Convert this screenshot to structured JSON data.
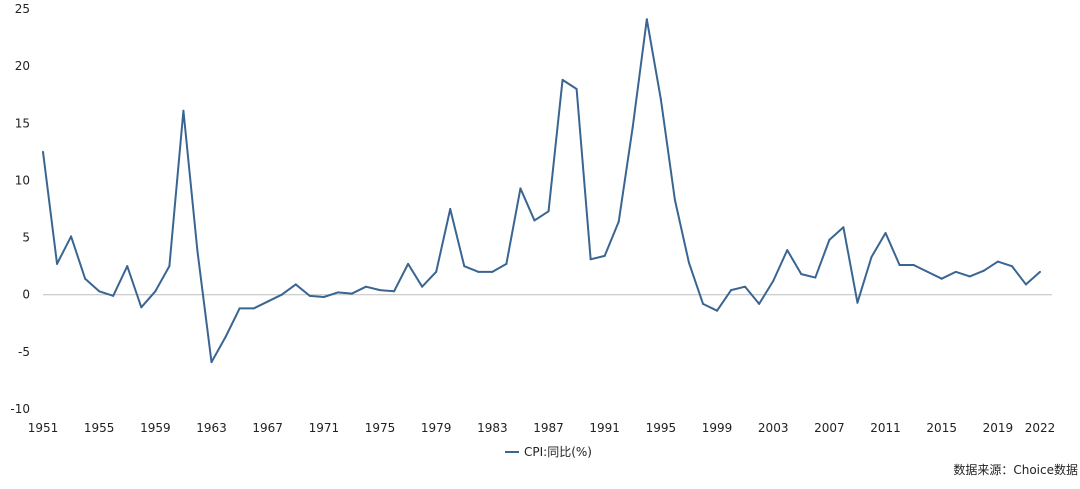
{
  "chart_data": {
    "type": "line",
    "title": "",
    "xlabel": "",
    "ylabel": "",
    "x": [
      1951,
      1952,
      1953,
      1954,
      1955,
      1956,
      1957,
      1958,
      1959,
      1960,
      1961,
      1962,
      1963,
      1964,
      1965,
      1966,
      1967,
      1968,
      1969,
      1970,
      1971,
      1972,
      1973,
      1974,
      1975,
      1976,
      1977,
      1978,
      1979,
      1980,
      1981,
      1982,
      1983,
      1984,
      1985,
      1986,
      1987,
      1988,
      1989,
      1990,
      1991,
      1992,
      1993,
      1994,
      1995,
      1996,
      1997,
      1998,
      1999,
      2000,
      2001,
      2002,
      2003,
      2004,
      2005,
      2006,
      2007,
      2008,
      2009,
      2010,
      2011,
      2012,
      2013,
      2014,
      2015,
      2016,
      2017,
      2018,
      2019,
      2020,
      2021,
      2022
    ],
    "series": [
      {
        "name": "CPI:同比(%)",
        "color": "#3a6592",
        "values": [
          12.5,
          2.7,
          5.1,
          1.4,
          0.3,
          -0.1,
          2.5,
          -1.1,
          0.3,
          2.5,
          16.1,
          3.8,
          -5.9,
          -3.7,
          -1.2,
          -1.2,
          -0.6,
          0.0,
          0.9,
          -0.1,
          -0.2,
          0.2,
          0.1,
          0.7,
          0.4,
          0.3,
          2.7,
          0.7,
          2.0,
          7.5,
          2.5,
          2.0,
          2.0,
          2.7,
          9.3,
          6.5,
          7.3,
          18.8,
          18.0,
          3.1,
          3.4,
          6.4,
          14.7,
          24.1,
          17.1,
          8.3,
          2.8,
          -0.8,
          -1.4,
          0.4,
          0.7,
          -0.8,
          1.2,
          3.9,
          1.8,
          1.5,
          4.8,
          5.9,
          -0.7,
          3.3,
          5.4,
          2.6,
          2.6,
          2.0,
          1.4,
          2.0,
          1.6,
          2.1,
          2.9,
          2.5,
          0.9,
          2.0
        ]
      }
    ],
    "ylim": [
      -10,
      25
    ],
    "yticks": [
      -10,
      -5,
      0,
      5,
      10,
      15,
      20,
      25
    ],
    "xticks": [
      1951,
      1955,
      1959,
      1963,
      1967,
      1971,
      1975,
      1979,
      1983,
      1987,
      1991,
      1995,
      1999,
      2003,
      2007,
      2011,
      2015,
      2019,
      2022
    ],
    "grid": false,
    "legend_position": "bottom-center",
    "source": "数据来源：Choice数据"
  }
}
